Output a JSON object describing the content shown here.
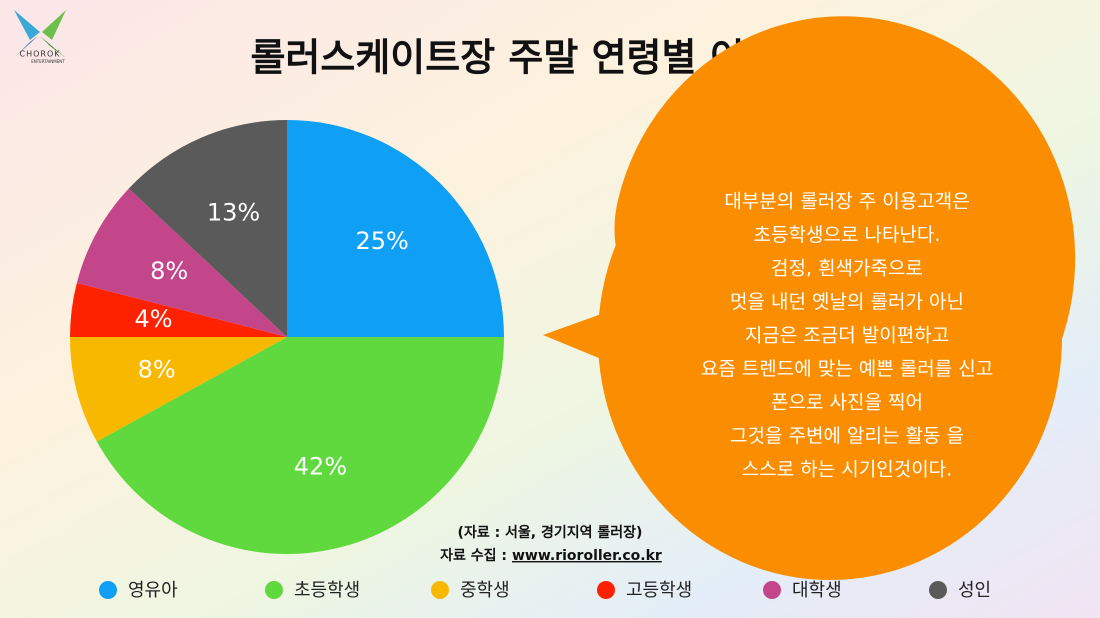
{
  "logo": {
    "name": "CHOROK",
    "sub": "ENTERTAINMENT"
  },
  "chart_data": {
    "type": "pie",
    "title": "롤러스케이트장 주말 연령별 이용현황",
    "categories": [
      "영유아",
      "초등학생",
      "중학생",
      "고등학생",
      "대학생",
      "성인"
    ],
    "values": [
      25,
      42,
      8,
      4,
      8,
      13
    ],
    "value_labels": [
      "25%",
      "42%",
      "8%",
      "4%",
      "8%",
      "13%"
    ],
    "colors": [
      "#0fa0f5",
      "#5fd93d",
      "#f9b800",
      "#ff2200",
      "#c4468a",
      "#5a5a5a"
    ],
    "annotation": [
      "대부분의 롤러장  주 이용고객은",
      "초등학생으로 나타난다.",
      "검정, 흰색가죽으로",
      "멋을 내던 옛날의 롤러가 아닌",
      "지금은 조금더 발이편하고",
      "요즘 트렌드에 맞는 예쁜 롤러를 신고",
      "폰으로 사진을 찍어",
      "그것을 주변에 알리는 활동 을",
      "스스로 하는 시기인것이다."
    ],
    "source": "(자료 : 서울, 경기지역 롤러장)",
    "source_label": "자료 수집 :",
    "source_url": "www.rioroller.co.kr"
  }
}
